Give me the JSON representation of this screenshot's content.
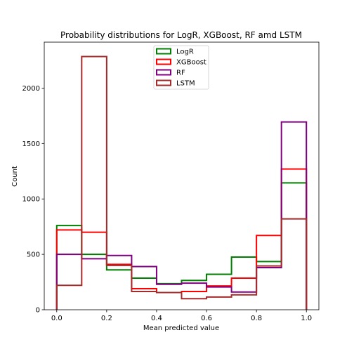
{
  "chart_data": {
    "type": "histogram",
    "title": "Probability distributions for LogR, XGBoost, RF amd LSTM",
    "xlabel": "Mean predicted value",
    "ylabel": "Count",
    "xlim": [
      -0.05,
      1.05
    ],
    "ylim": [
      0,
      2415
    ],
    "xticks": [
      0.0,
      0.2,
      0.4,
      0.6,
      0.8,
      1.0
    ],
    "xtick_labels": [
      "0.0",
      "0.2",
      "0.4",
      "0.6",
      "0.8",
      "1.0"
    ],
    "yticks": [
      0,
      500,
      1000,
      1500,
      2000
    ],
    "ytick_labels": [
      "0",
      "500",
      "1000",
      "1500",
      "2000"
    ],
    "bin_edges": [
      0.0,
      0.1,
      0.2,
      0.3,
      0.4,
      0.5,
      0.6,
      0.7,
      0.8,
      0.9,
      1.0
    ],
    "grid": false,
    "legend_position": "upper-center",
    "series": [
      {
        "name": "LogR",
        "color": "#008000",
        "counts": [
          760,
          500,
          360,
          285,
          235,
          265,
          320,
          475,
          435,
          1145
        ]
      },
      {
        "name": "XGBoost",
        "color": "#ff0000",
        "counts": [
          720,
          700,
          410,
          190,
          155,
          165,
          215,
          285,
          670,
          1270
        ]
      },
      {
        "name": "RF",
        "color": "#800080",
        "counts": [
          500,
          460,
          490,
          390,
          230,
          240,
          205,
          160,
          380,
          1695
        ]
      },
      {
        "name": "LSTM",
        "color": "#a52a2a",
        "counts": [
          220,
          2285,
          400,
          165,
          155,
          100,
          115,
          135,
          395,
          820
        ]
      }
    ]
  }
}
